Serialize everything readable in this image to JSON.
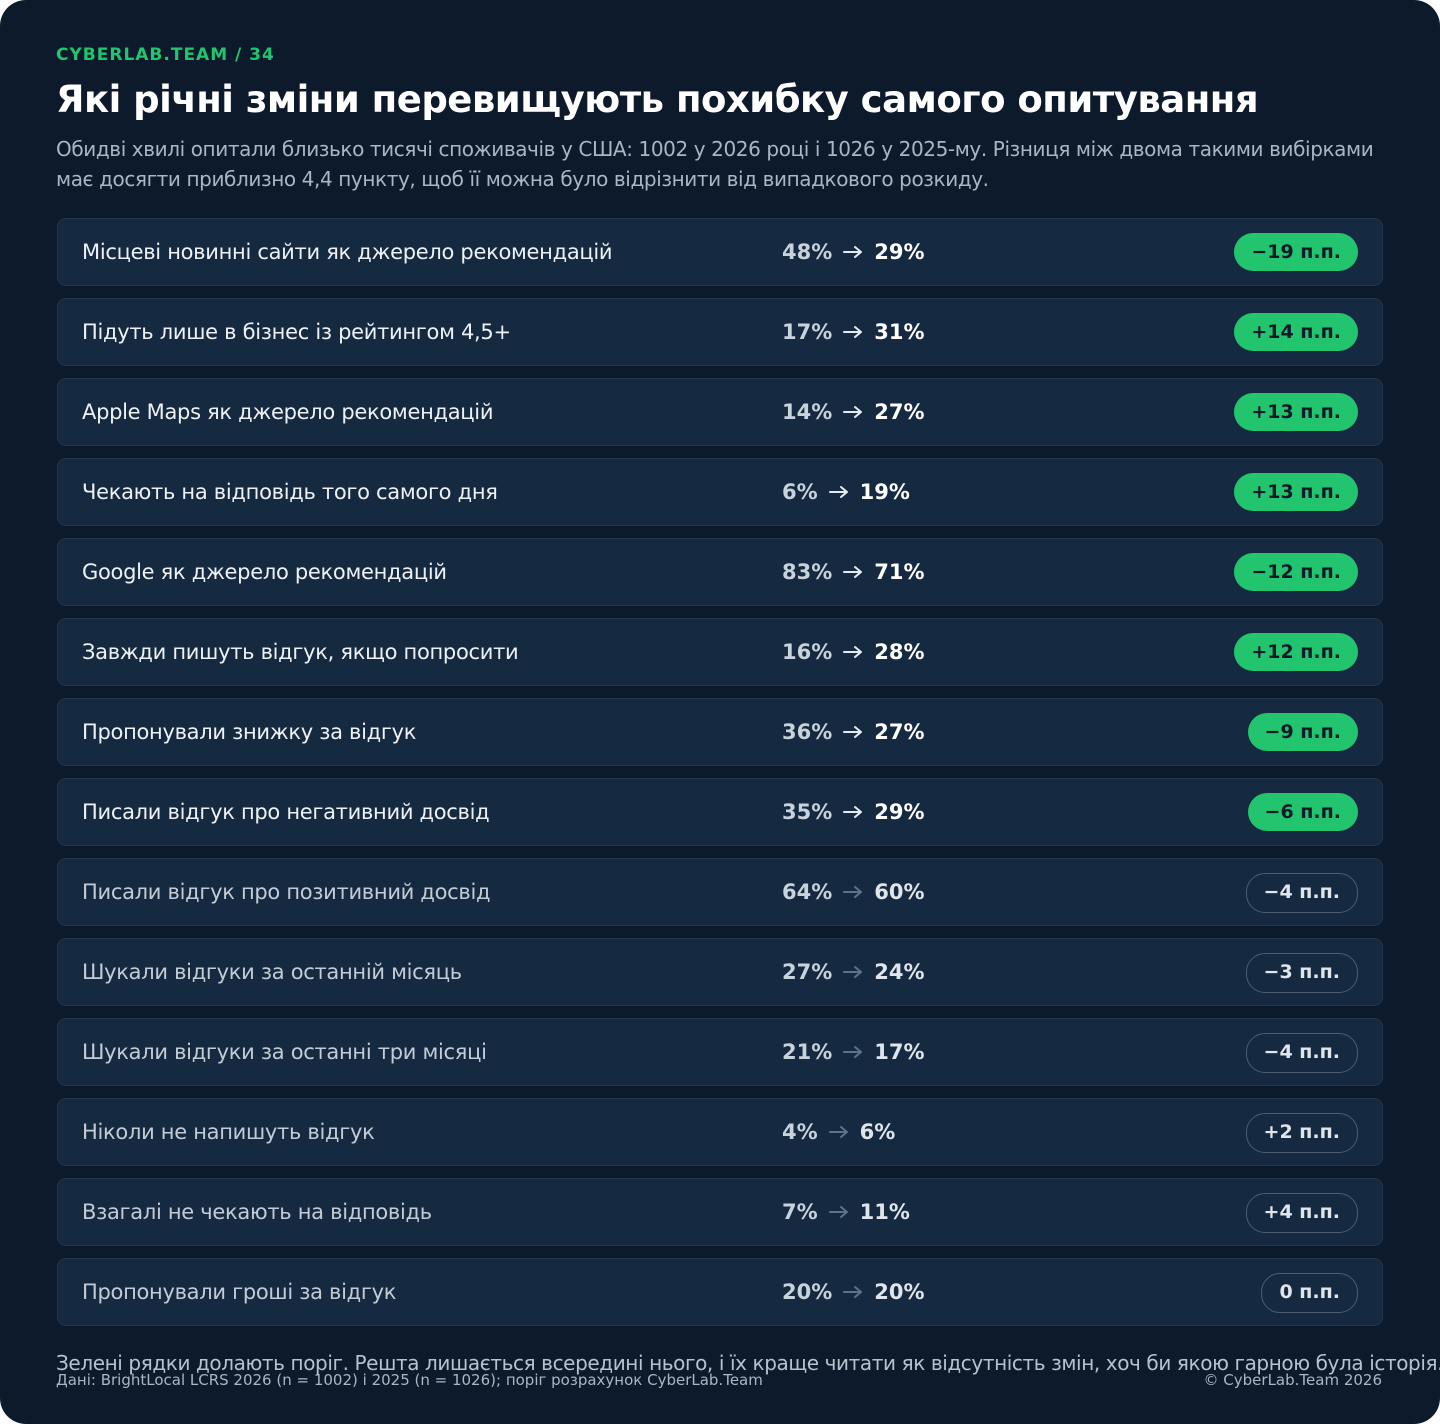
{
  "header": {
    "kicker": "CYBERLAB.TEAM / 34",
    "title": "Які річні зміни перевищують похибку самого опитування",
    "subtitle": "Обидві хвилі опитали близько тисячі споживачів у США: 1002 у 2026 році і 1026 у 2025-му. Різниця між двома такими вибірками має досягти приблизно 4,4 пункту, щоб її можна було відрізнити від випадкового розкиду."
  },
  "table": {
    "rows": [
      {
        "label": "Місцеві новинні сайти як джерело рекомендацій",
        "from": "48%",
        "to": "29%",
        "change": "−19 п.п.",
        "significant": true
      },
      {
        "label": "Підуть лише в бізнес із рейтингом 4,5+",
        "from": "17%",
        "to": "31%",
        "change": "+14 п.п.",
        "significant": true
      },
      {
        "label": "Apple Maps як джерело рекомендацій",
        "from": "14%",
        "to": "27%",
        "change": "+13 п.п.",
        "significant": true
      },
      {
        "label": "Чекають на відповідь того самого дня",
        "from": "6%",
        "to": "19%",
        "change": "+13 п.п.",
        "significant": true
      },
      {
        "label": "Google як джерело рекомендацій",
        "from": "83%",
        "to": "71%",
        "change": "−12 п.п.",
        "significant": true
      },
      {
        "label": "Завжди пишуть відгук, якщо попросити",
        "from": "16%",
        "to": "28%",
        "change": "+12 п.п.",
        "significant": true
      },
      {
        "label": "Пропонували знижку за відгук",
        "from": "36%",
        "to": "27%",
        "change": "−9 п.п.",
        "significant": true
      },
      {
        "label": "Писали відгук про негативний досвід",
        "from": "35%",
        "to": "29%",
        "change": "−6 п.п.",
        "significant": true
      },
      {
        "label": "Писали відгук про позитивний досвід",
        "from": "64%",
        "to": "60%",
        "change": "−4 п.п.",
        "significant": false
      },
      {
        "label": "Шукали відгуки за останній місяць",
        "from": "27%",
        "to": "24%",
        "change": "−3 п.п.",
        "significant": false
      },
      {
        "label": "Шукали відгуки за останні три місяці",
        "from": "21%",
        "to": "17%",
        "change": "−4 п.п.",
        "significant": false
      },
      {
        "label": "Ніколи не напишуть відгук",
        "from": "4%",
        "to": "6%",
        "change": "+2 п.п.",
        "significant": false
      },
      {
        "label": "Взагалі не чекають на відповідь",
        "from": "7%",
        "to": "11%",
        "change": "+4 п.п.",
        "significant": false
      },
      {
        "label": "Пропонували гроші за відгук",
        "from": "20%",
        "to": "20%",
        "change": "0 п.п.",
        "significant": false
      }
    ]
  },
  "footer": {
    "note": "Зелені рядки долають поріг. Решта лишається всередині нього, і їх краще читати як відсутність змін, хоч би якою гарною була історія.",
    "source": "Дані: BrightLocal LCRS 2026 (n = 1002) і 2025 (n = 1026); поріг розрахунок CyberLab.Team",
    "copyright": "© CyberLab.Team  2026"
  }
}
